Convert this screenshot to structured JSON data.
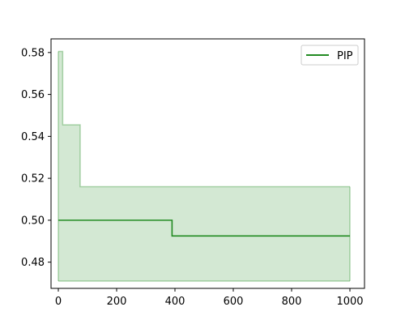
{
  "chart_data": {
    "type": "line",
    "title": "",
    "xlabel": "",
    "ylabel": "",
    "xlim": [
      -25,
      1050
    ],
    "ylim": [
      0.4675,
      0.5865
    ],
    "x_ticks": [
      0,
      200,
      400,
      600,
      800,
      1000
    ],
    "x_tick_labels": [
      "0",
      "200",
      "400",
      "600",
      "800",
      "1000"
    ],
    "y_ticks": [
      0.48,
      0.5,
      0.52,
      0.54,
      0.56,
      0.58
    ],
    "y_tick_labels": [
      "0.48",
      "0.50",
      "0.52",
      "0.54",
      "0.56",
      "0.58"
    ],
    "grid": false,
    "legend": {
      "position": "top-right",
      "entries": [
        "PIP"
      ]
    },
    "series": [
      {
        "name": "PIP",
        "color": "#228b22",
        "step": "post",
        "x": [
          0,
          390,
          1000
        ],
        "y": [
          0.5,
          0.4925,
          0.4925
        ]
      }
    ],
    "band": {
      "color": "#228b22",
      "fill_opacity": 0.2,
      "step": "post",
      "x": [
        0,
        15,
        75,
        1000
      ],
      "upper": [
        0.5805,
        0.5455,
        0.516,
        0.516
      ],
      "lower": [
        0.471,
        0.471,
        0.471,
        0.471
      ]
    }
  }
}
